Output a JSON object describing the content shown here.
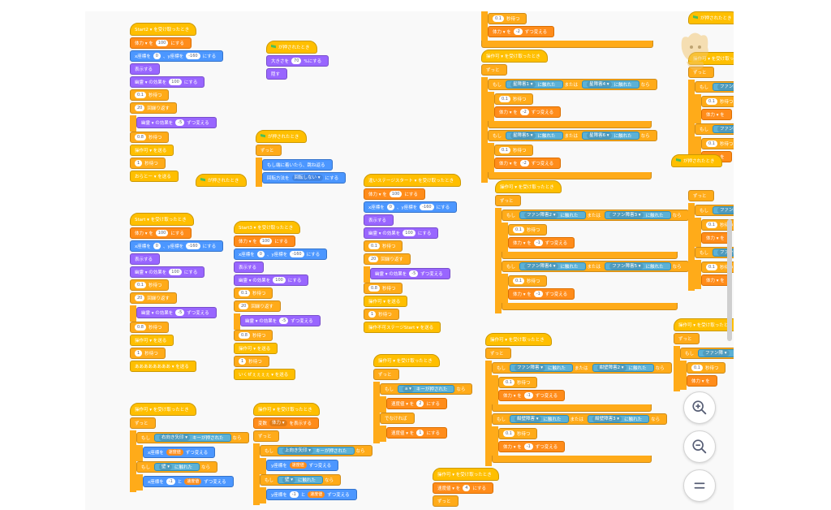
{
  "colors": {
    "control": "#ffab19",
    "event": "#ffbf00",
    "motion": "#4c97ff",
    "looks": "#9966ff",
    "variable": "#ff8c1a",
    "sensing": "#5cb1d6",
    "operator": "#59c059"
  },
  "labels": {
    "start_hat": "Start ▾ を受け取ったとき",
    "start2_hat": "Start2 ▾ を受け取ったとき",
    "start3_hat": "Start3 ▾ を受け取ったとき",
    "flag_hat": "が押されたとき",
    "op_hat": "操作可 ▾ を受け取ったとき",
    "stage_hat": "違いステージスタート ▾ を受け取ったとき",
    "hp": "体力 ▾ を",
    "hp_val": "100",
    "set_to": "にする",
    "goto_x": "x座標を",
    "goto_y": "、y座標を",
    "goto_end": "にする",
    "x0": "0",
    "ym160": "-160",
    "show": "表示する",
    "ghost": "幽霊 ▾ の効果を",
    "change_by": "ずつ変える",
    "wait": "秒待つ",
    "wait_01": "0.1",
    "wait_08": "0.8",
    "wait_1": "1",
    "repeat": "回繰り返す",
    "repeat_20": "20",
    "m5": "-5",
    "send": "操作可 ▾ を送る",
    "forever": "ずっと",
    "if": "もし",
    "then": "なら",
    "else": "でなければ",
    "touching": "に触れた",
    "or": "または",
    "size": "大きさを",
    "size_val": "70",
    "size_end": "%にする",
    "hide": "隠す",
    "bounce": "もし端に着いたら、跳ね返る",
    "rotation": "回転方法を",
    "rotation_val": "回転しない ▾",
    "rotation_end": "にする",
    "key_pressed": "キーが押された",
    "right_arrow": "右向き矢印 ▾",
    "up_arrow": "上向き矢印 ▾",
    "a_key": "a ▾",
    "speed": "移動値 ▾ を",
    "fan_short": "ファン障 ▾",
    "wall": "壁 ▾",
    "obstacle1": "星障害1 ▾",
    "obstacle4": "星障害4 ▾",
    "obstacle5": "星障害5 ▾",
    "obstacle6": "星障害6 ▾",
    "fan2": "ファン障害2 ▾",
    "fan3": "ファン障害3 ▾",
    "fan4": "ファン障害4 ▾",
    "fan5": "ファン障害5 ▾",
    "fan": "ファン障害 ▾",
    "fan_wall2": "紺壁障害2 ▾",
    "fan_wall3": "紺壁障害3 ▾",
    "fan_wall": "紺壁障害 ▾",
    "m2": "-2",
    "m1": "-1",
    "m3": "-3",
    "v2": "2",
    "v4": "4",
    "v5": "5",
    "display": "変数",
    "display_var": "体力 ▾",
    "display_end": "を表示する",
    "speed_inc": "速度値",
    "speed_label": "速度値 ▾ を",
    "a_send": "ああああああああ ▾ を送る",
    "i_send": "いくぜぇぇぇぇ ▾ を送る",
    "go_send": "操作不可ステージStart ▾ を送る",
    "orato": "おらとー ▾ を送る",
    "s_send": "操作可 ▾ を送る",
    "x_pos": "x座標を",
    "y_pos": "y座標を",
    "to": "と"
  },
  "zoom": {
    "in": "zoom-in",
    "out": "zoom-out",
    "reset": "reset-zoom"
  }
}
